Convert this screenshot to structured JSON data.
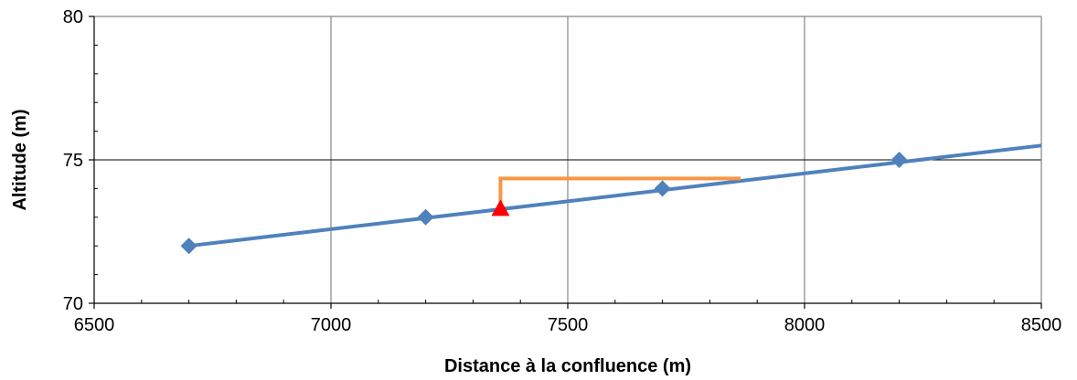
{
  "chart_data": {
    "type": "line",
    "xlabel": "Distance à la confluence (m)",
    "ylabel": "Altitude (m)",
    "xlim": [
      6500,
      8500
    ],
    "ylim": [
      70,
      80
    ],
    "x_ticks": [
      6500,
      7000,
      7500,
      8000,
      8500
    ],
    "y_ticks": [
      70,
      75,
      80
    ],
    "grid": true,
    "legend": "none",
    "series": [
      {
        "style": "line-with-diamond-markers",
        "color": "#4F81BD",
        "line_x": [
          6700,
          8500
        ],
        "line_y": [
          72.0,
          75.5
        ],
        "marker_points": [
          {
            "x": 6700,
            "y": 72.0
          },
          {
            "x": 7200,
            "y": 73.0
          },
          {
            "x": 7700,
            "y": 74.0
          },
          {
            "x": 8200,
            "y": 75.0
          }
        ]
      },
      {
        "style": "step-line",
        "color": "#F79646",
        "points": [
          {
            "x": 7358,
            "y": 73.3
          },
          {
            "x": 7358,
            "y": 74.35
          },
          {
            "x": 7865,
            "y": 74.35
          }
        ]
      },
      {
        "style": "triangle-marker",
        "color": "#FF0000",
        "points": [
          {
            "x": 7358,
            "y": 73.3
          }
        ]
      }
    ]
  }
}
